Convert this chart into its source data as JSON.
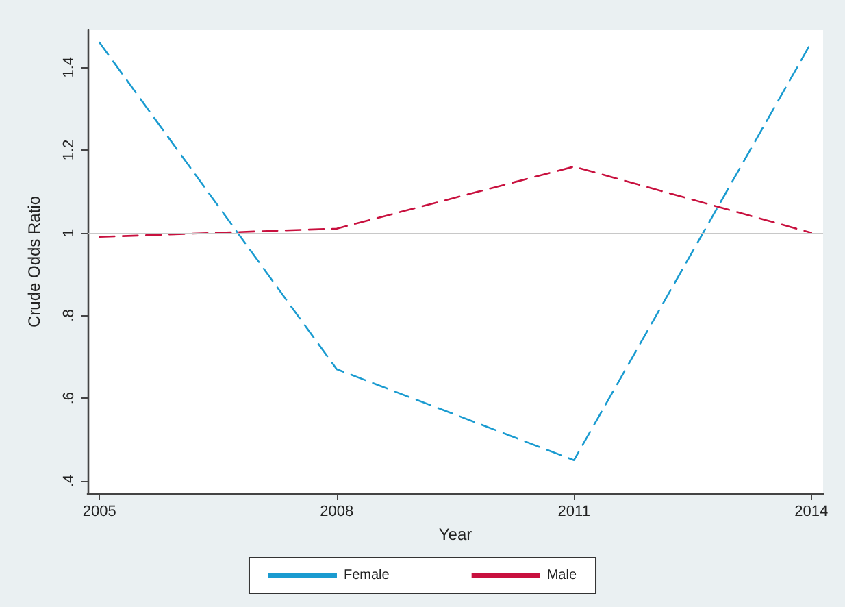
{
  "chart_data": {
    "type": "line",
    "xlabel": "Year",
    "ylabel": "Crude Odds Ratio",
    "x": [
      2005,
      2008,
      2011,
      2014
    ],
    "series": [
      {
        "name": "Female",
        "color": "#1a9bd0",
        "values": [
          1.46,
          0.67,
          0.45,
          1.46
        ]
      },
      {
        "name": "Male",
        "color": "#c8103e",
        "values": [
          0.99,
          1.01,
          1.16,
          1.0
        ]
      }
    ],
    "xlim": [
      2004.85,
      2014.15
    ],
    "xticks": [
      2005,
      2008,
      2011,
      2014
    ],
    "ylim": [
      0.37,
      1.49
    ],
    "yticks": [
      {
        "value": 0.4,
        "label": ".4"
      },
      {
        "value": 0.6,
        "label": ".6"
      },
      {
        "value": 0.8,
        "label": ".8"
      },
      1,
      1.2,
      1.4
    ],
    "ref_lines": [
      {
        "axis": "y",
        "value": 1,
        "color": "#c8c8c8"
      }
    ],
    "grid": false,
    "legend": "bottom",
    "marker": "none",
    "line_style": "dashed"
  }
}
